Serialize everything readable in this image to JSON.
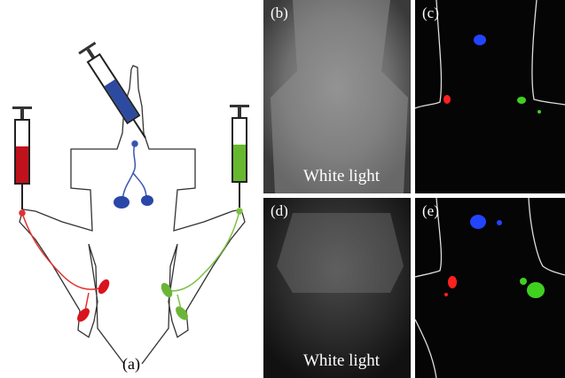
{
  "panels": [
    {
      "label": "(a)"
    },
    {
      "label": "(b)",
      "caption": "White light"
    },
    {
      "label": "(c)"
    },
    {
      "label": "(d)",
      "caption": "White light"
    },
    {
      "label": "(e)"
    }
  ]
}
